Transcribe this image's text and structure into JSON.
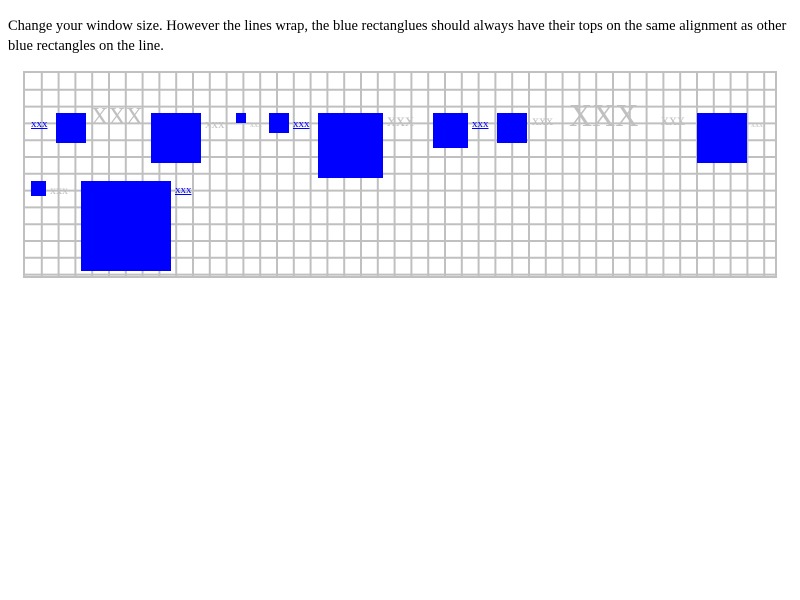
{
  "intro_text": "Change your window size. However the lines wrap, the blue rectanglues should always have their tops on the same alignment as other blue rectangles on the line.",
  "colors": {
    "rect": "#0000ff",
    "grid": "#c0c0c0",
    "gray_text": "#c0c0c0",
    "blue_text": "#0000ff"
  },
  "items": [
    {
      "kind": "text",
      "value": "xxx",
      "color": "blue"
    },
    {
      "kind": "rect"
    },
    {
      "kind": "text",
      "value": "XXX",
      "color": "gray"
    },
    {
      "kind": "rect"
    },
    {
      "kind": "text",
      "value": "xxx",
      "color": "gray"
    },
    {
      "kind": "rect"
    },
    {
      "kind": "text",
      "value": "xxx",
      "color": "gray"
    },
    {
      "kind": "rect"
    },
    {
      "kind": "text",
      "value": "xxx",
      "color": "blue"
    },
    {
      "kind": "rect"
    },
    {
      "kind": "text",
      "value": "xxx",
      "color": "gray"
    },
    {
      "kind": "rect"
    },
    {
      "kind": "text",
      "value": "xxx",
      "color": "blue"
    },
    {
      "kind": "rect"
    },
    {
      "kind": "text",
      "value": "xxx",
      "color": "gray"
    },
    {
      "kind": "text",
      "value": "XXX",
      "color": "gray"
    },
    {
      "kind": "text",
      "value": "xxx",
      "color": "gray"
    },
    {
      "kind": "rect"
    },
    {
      "kind": "text",
      "value": "xxx",
      "color": "gray"
    },
    {
      "kind": "rect"
    },
    {
      "kind": "text",
      "value": "xxx",
      "color": "gray"
    },
    {
      "kind": "rect"
    },
    {
      "kind": "text",
      "value": "xxx",
      "color": "blue"
    }
  ]
}
